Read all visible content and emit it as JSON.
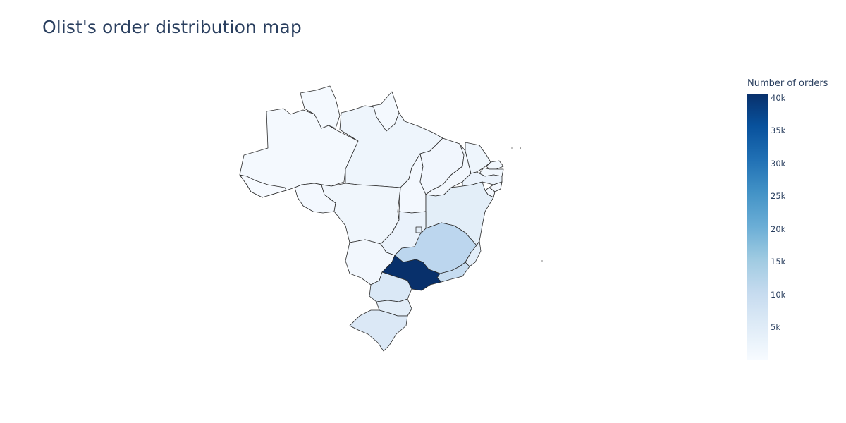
{
  "title": "Olist's order distribution map",
  "colorbar": {
    "title": "Number of orders",
    "ticks": [
      "40k",
      "35k",
      "30k",
      "25k",
      "20k",
      "15k",
      "10k",
      "5k"
    ],
    "colorscale": [
      "#f7fbff",
      "#deebf7",
      "#c6dbef",
      "#9ecae1",
      "#6baed6",
      "#4292c6",
      "#2171b5",
      "#08519c",
      "#08306b"
    ]
  },
  "map": {
    "country": "Brazil",
    "region_colors": {
      "AM": "#f4f9fe",
      "PA": "#eef5fc",
      "RR": "#f4f9fe",
      "AP": "#f4f9fe",
      "AC": "#f6faff",
      "RO": "#f3f8fe",
      "MT": "#f0f6fc",
      "TO": "#f3f8fe",
      "MA": "#f1f6fd",
      "PI": "#f2f7fd",
      "CE": "#eef5fc",
      "RN": "#f2f7fd",
      "PB": "#f1f7fd",
      "PE": "#eaf2fb",
      "AL": "#f2f7fd",
      "SE": "#f3f8fe",
      "BA": "#e3eef8",
      "MG": "#bcd6ee",
      "ES": "#e3eef9",
      "RJ": "#c6dcf0",
      "SP": "#08306b",
      "PR": "#dae8f6",
      "SC": "#e2edf8",
      "RS": "#dbe8f6",
      "MS": "#f2f7fd",
      "GO": "#eaf2fb",
      "DF": "#e4eef8"
    }
  }
}
